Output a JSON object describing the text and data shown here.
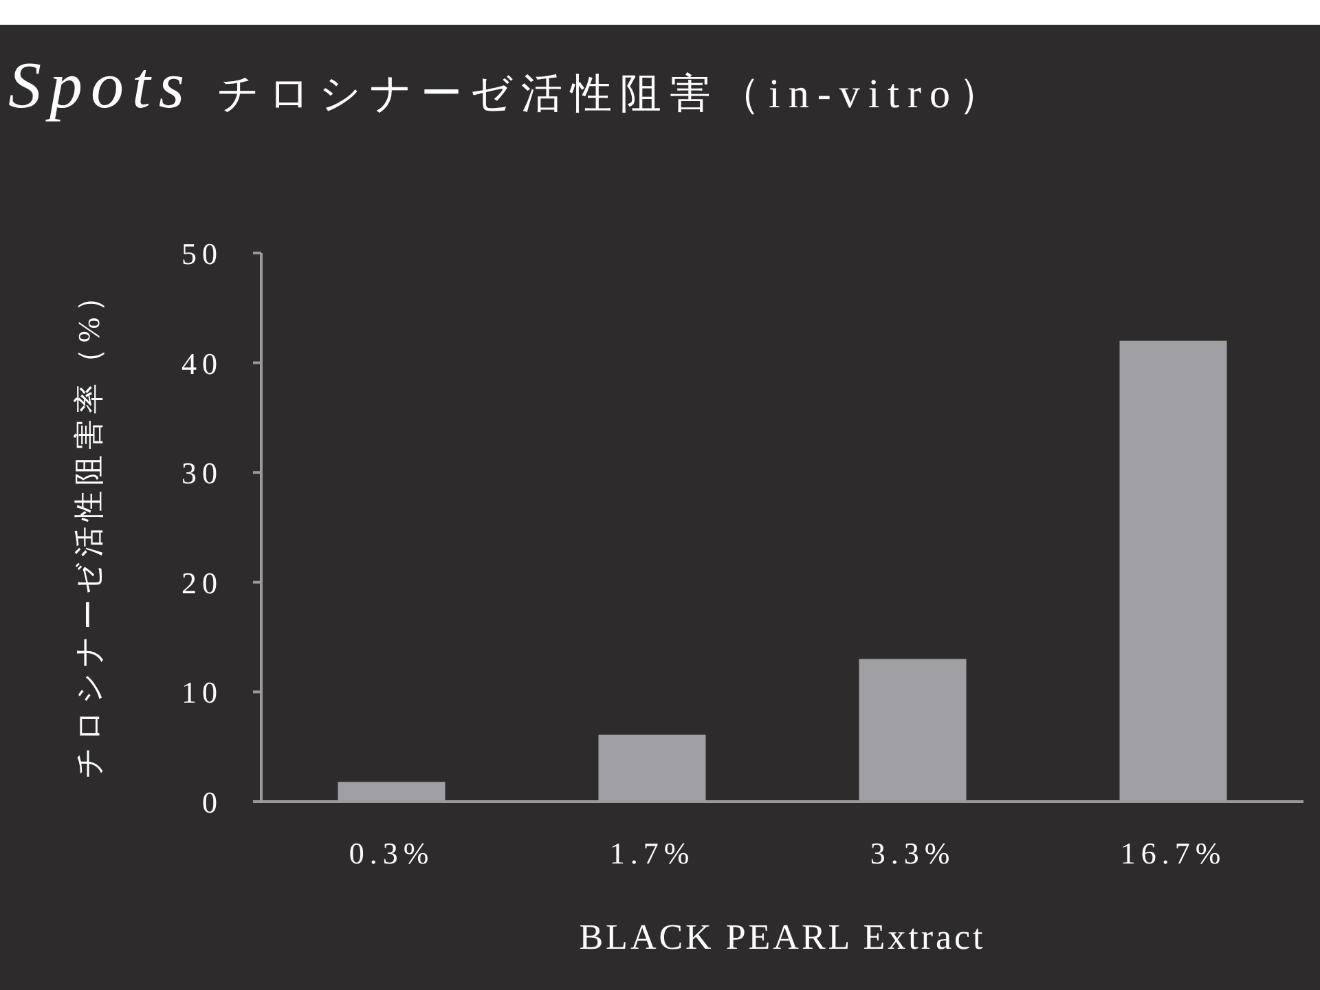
{
  "chart_data": {
    "type": "bar",
    "title": "Spots チロシナーゼ活性阻害（in-vitro）",
    "xlabel": "BLACK PEARL Extract",
    "ylabel": "チロシナーゼ活性阻害率（%）",
    "categories": [
      "0.3%",
      "1.7%",
      "3.3%",
      "16.7%"
    ],
    "values": [
      1.8,
      6.1,
      13.0,
      42.0
    ],
    "color": "#a0a0a4",
    "ylim": [
      0,
      50
    ],
    "yticks": [
      0,
      10,
      20,
      30,
      40,
      50
    ],
    "grid": false
  }
}
